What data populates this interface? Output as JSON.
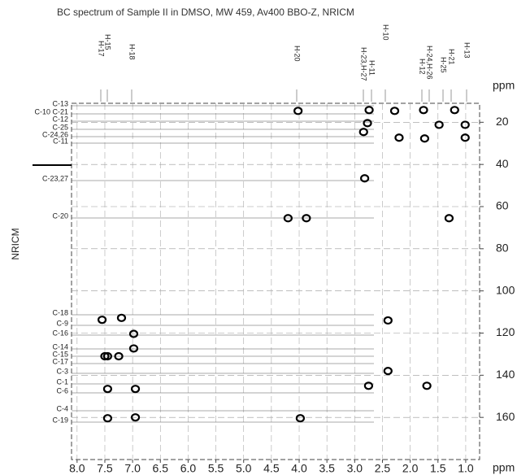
{
  "chart_data": {
    "type": "scatter",
    "title": "BC spectrum of Sample II in DMSO, MW 459, Av400 BBO-Z, NRICM",
    "y_label": "NRICM",
    "y_unit": "ppm",
    "x_unit": "ppm",
    "color": "#000000",
    "grid": true,
    "xlim": [
      8.1,
      0.75
    ],
    "xticks": [
      {
        "value": 8,
        "label": "8.0"
      },
      7.5,
      {
        "value": 7,
        "label": "7.0"
      },
      6.5,
      {
        "value": 6,
        "label": "6.0"
      },
      5.5,
      {
        "value": 5,
        "label": "5.0"
      },
      4.5,
      {
        "value": 4,
        "label": "4.0"
      },
      3.5,
      {
        "value": 3,
        "label": "3.0"
      },
      2.5,
      {
        "value": 2,
        "label": "2.0"
      },
      1.5,
      {
        "value": 1,
        "label": "1.0"
      }
    ],
    "ylim": [
      11,
      180
    ],
    "yticks": [
      20,
      40,
      60,
      80,
      100,
      120,
      140,
      160
    ],
    "x": [
      4.02,
      2.74,
      2.28,
      1.76,
      1.2,
      2.77,
      1.48,
      1.01,
      2.84,
      1.01,
      1.74,
      2.2,
      2.82,
      1.3,
      4.2,
      3.87,
      2.4,
      2.4,
      2.75,
      1.7,
      7.55,
      7.2,
      6.98,
      6.98,
      7.5,
      7.45,
      7.25,
      7.45,
      7.45,
      6.95,
      3.98,
      6.95
    ],
    "values": [
      14.6,
      14.2,
      14.6,
      14.2,
      14.2,
      20.4,
      21.2,
      21.2,
      24.6,
      27.3,
      27.7,
      27.3,
      46.6,
      65.5,
      65.5,
      65.5,
      114,
      138,
      145,
      145,
      113.7,
      112.8,
      120.4,
      127.3,
      131,
      131,
      131,
      146.5,
      160.4,
      160,
      160.4,
      146.5
    ],
    "carbon_labels": [
      "C-13",
      "C-10 C-21",
      "C-12",
      "C-25",
      "C-24,26",
      "C-11",
      "C-23,27",
      "C-20",
      "C-18",
      "C-9",
      "C-16",
      "C-14",
      "C-15",
      "C-17",
      "C-3",
      "C-1",
      "C-6",
      "C-4",
      "C-19"
    ],
    "proton_labels": [
      "H-15",
      "H-17",
      "H-18",
      "H-20",
      "H-23,H-27",
      "H-11",
      "H-10",
      "H-24,H-26",
      "H-12",
      "H-25",
      "H-21",
      "H-13"
    ]
  }
}
